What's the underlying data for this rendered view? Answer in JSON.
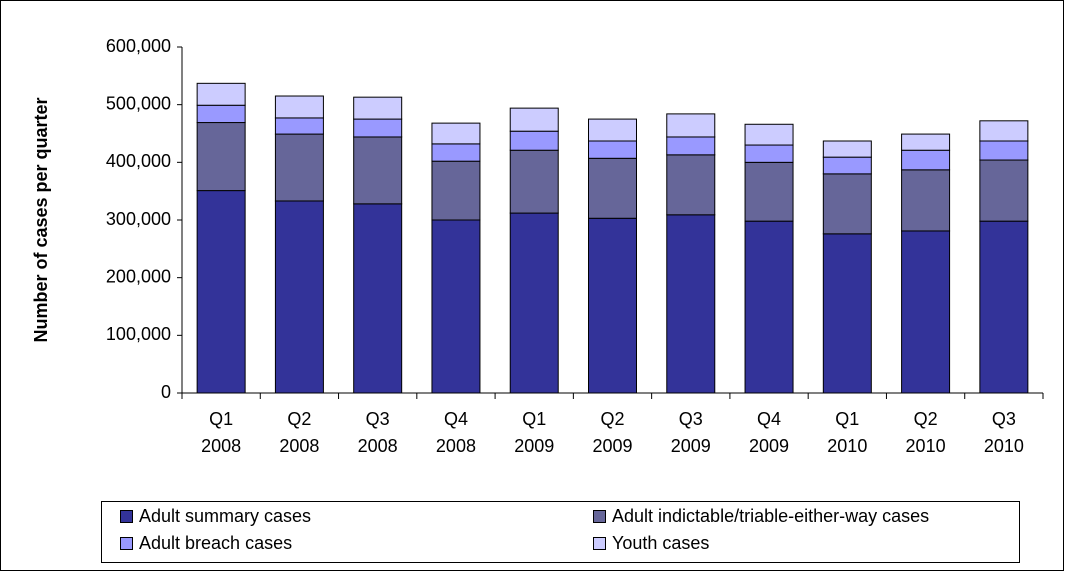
{
  "chart_data": {
    "type": "stacked-bar",
    "y_label": "Number of cases per quarter",
    "categories": [
      "Q1 2008",
      "Q2 2008",
      "Q3 2008",
      "Q4 2008",
      "Q1 2009",
      "Q2 2009",
      "Q3 2009",
      "Q4 2009",
      "Q1 2010",
      "Q2 2010",
      "Q3 2010"
    ],
    "series": [
      {
        "name": "Adult summary cases",
        "color": "#333399",
        "values": [
          351000,
          333000,
          328000,
          300000,
          312000,
          303000,
          309000,
          298000,
          276000,
          281000,
          298000
        ]
      },
      {
        "name": "Adult indictable/triable-either-way cases",
        "color": "#666699",
        "values": [
          118000,
          116000,
          116000,
          102000,
          109000,
          104000,
          104000,
          102000,
          104000,
          106000,
          106000
        ]
      },
      {
        "name": "Adult breach cases",
        "color": "#9999ff",
        "values": [
          30000,
          28000,
          31000,
          30000,
          33000,
          30000,
          31000,
          30000,
          29000,
          34000,
          33000
        ]
      },
      {
        "name": "Youth cases",
        "color": "#ccccff",
        "values": [
          38000,
          38000,
          38000,
          36000,
          40000,
          38000,
          40000,
          36000,
          28000,
          28000,
          35000
        ]
      }
    ],
    "ylim": [
      0,
      600000
    ],
    "yticks": [
      0,
      {
        "value": 100000,
        "label": "100,000"
      },
      {
        "value": 200000,
        "label": "200,000"
      },
      {
        "value": 300000,
        "label": "300,000"
      },
      {
        "value": 400000,
        "label": "400,000"
      },
      {
        "value": 500000,
        "label": "500,000"
      },
      {
        "value": 600000,
        "label": "600,000"
      }
    ],
    "legend": "bottom"
  }
}
